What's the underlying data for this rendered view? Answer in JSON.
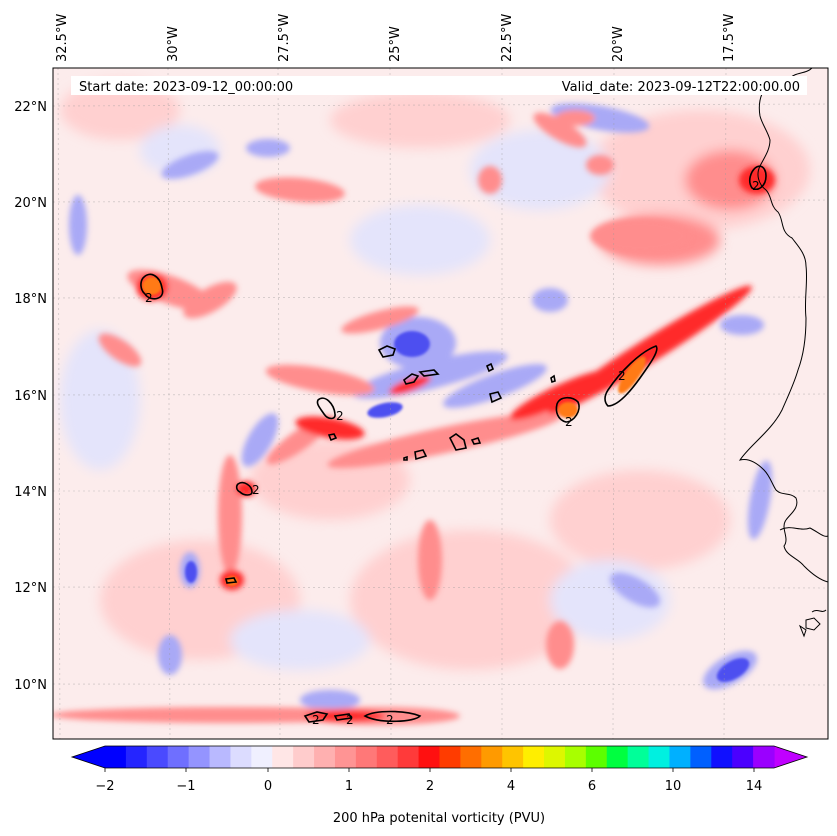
{
  "map": {
    "title_left": "Start date: 2023-09-12_00:00:00",
    "title_right": "Valid_date: 2023-09-12T22:00:00.00",
    "lon_labels": [
      "32.5°W",
      "30°W",
      "27.5°W",
      "25°W",
      "22.5°W",
      "20°W",
      "17.5°W"
    ],
    "lat_labels": [
      "22°N",
      "20°N",
      "18°N",
      "16°N",
      "14°N",
      "12°N",
      "10°N"
    ],
    "contour_label": "2",
    "colorbar": {
      "label": "200 hPa potenital vorticity (PVU)",
      "ticks": [
        "−2",
        "−1",
        "0",
        "1",
        "2",
        "4",
        "6",
        "10",
        "14"
      ],
      "colors": [
        "#0000ff",
        "#2525ff",
        "#4a4aff",
        "#6f6fff",
        "#9494ff",
        "#b9b9ff",
        "#dcdcff",
        "#f0f0ff",
        "#ffe6e6",
        "#ffcccc",
        "#ffb0b0",
        "#ff9494",
        "#ff7878",
        "#ff5c5c",
        "#ff3a3a",
        "#ff1010",
        "#ff3c00",
        "#ff6e00",
        "#ff9a00",
        "#ffc400",
        "#ffee00",
        "#ddf700",
        "#a8ff00",
        "#5cff00",
        "#00ff40",
        "#00ff99",
        "#00f0e0",
        "#00b0ff",
        "#0060ff",
        "#1010ff",
        "#4b00ff",
        "#9a00ff"
      ],
      "low_extend_color": "#0000ff",
      "high_extend_color": "#c000ff"
    },
    "field_colors": {
      "background": "#fcecec",
      "neg_light": "#e4e4fb",
      "neg_mid": "#a9a9f6",
      "neg_strong": "#4e4ff0",
      "pos_light": "#ffd0d0",
      "pos_mid": "#ff8d8d",
      "pos_strong": "#ff2a2a",
      "orange": "#ff7a14"
    }
  }
}
